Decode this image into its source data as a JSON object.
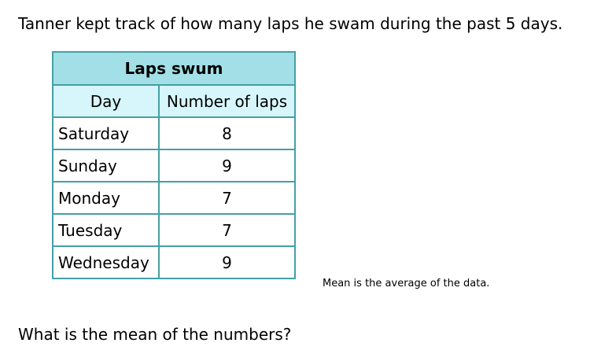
{
  "intro_text": "Tanner kept track of how many laps he swam during the past 5 days.",
  "table": {
    "title": "Laps swum",
    "headers": [
      "Day",
      "Number of laps"
    ],
    "rows": [
      {
        "day": "Saturday",
        "laps": "8"
      },
      {
        "day": "Sunday",
        "laps": "9"
      },
      {
        "day": "Monday",
        "laps": "7"
      },
      {
        "day": "Tuesday",
        "laps": "7"
      },
      {
        "day": "Wednesday",
        "laps": "9"
      }
    ]
  },
  "note": "Mean is the average of the data.",
  "question": "What is the mean of the numbers?",
  "colors": {
    "border": "#44a0a6",
    "title_bg": "#a3dfe6",
    "header_bg": "#d6f6fb"
  }
}
